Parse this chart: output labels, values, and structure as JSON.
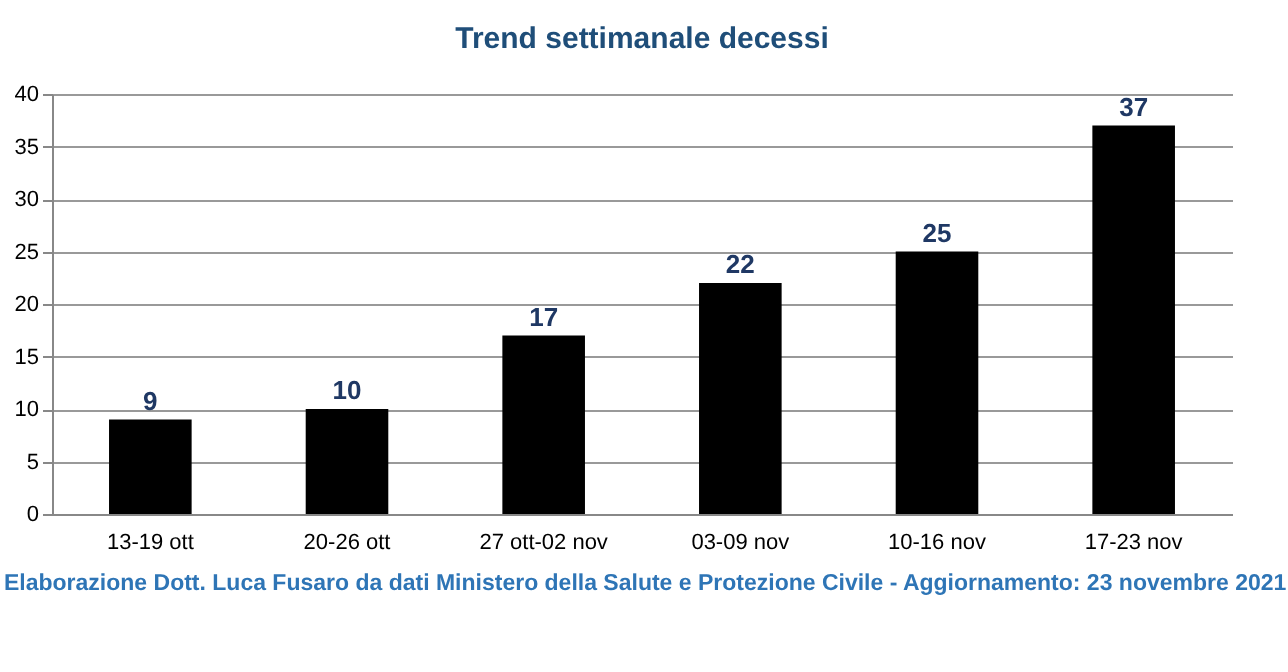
{
  "chart_data": {
    "type": "bar",
    "title": "Trend settimanale decessi",
    "categories": [
      "13-19 ott",
      "20-26 ott",
      "27 ott-02 nov",
      "03-09 nov",
      "10-16 nov",
      "17-23 nov"
    ],
    "values": [
      9,
      10,
      17,
      22,
      25,
      37
    ],
    "color": "#000000",
    "ylim": [
      0,
      40
    ],
    "yticks": [
      0,
      5,
      10,
      15,
      20,
      25,
      30,
      35,
      40
    ],
    "grid": "y",
    "data_labels": true,
    "annotations": [
      "Elaborazione Dott. Luca Fusaro da dati Ministero della Salute e Protezione Civile - Aggiornamento: 23 novembre 2021"
    ]
  }
}
